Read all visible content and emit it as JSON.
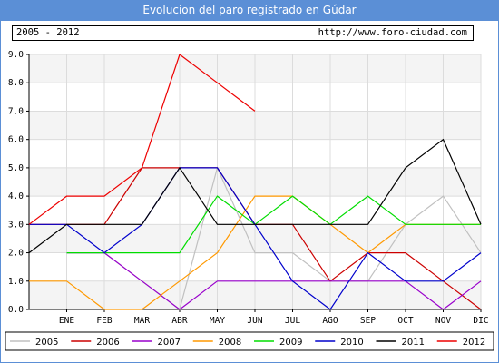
{
  "header": {
    "title": "Evolucion del paro registrado en Gúdar",
    "period": "2005 - 2012",
    "url": "http://www.foro-ciudad.com"
  },
  "chart_data": {
    "type": "line",
    "title": "Evolucion del paro registrado en Gúdar",
    "xlabel": "",
    "ylabel": "",
    "x": [
      "",
      "ENE",
      "FEB",
      "MAR",
      "ABR",
      "MAY",
      "JUN",
      "JUL",
      "AGO",
      "SEP",
      "OCT",
      "NOV",
      "DIC"
    ],
    "ylim": [
      0,
      9
    ],
    "yticks": [
      "0.0",
      "1.0",
      "2.0",
      "3.0",
      "4.0",
      "5.0",
      "6.0",
      "7.0",
      "8.0",
      "9.0"
    ],
    "grid": true,
    "legend_position": "bottom",
    "series": [
      {
        "name": "2005",
        "color": "#c0c0c0",
        "values": [
          null,
          2,
          2,
          1,
          0,
          5,
          2,
          2,
          1,
          1,
          3,
          4,
          2
        ]
      },
      {
        "name": "2006",
        "color": "#cc0000",
        "values": [
          3,
          3,
          3,
          5,
          5,
          5,
          3,
          3,
          1,
          2,
          2,
          1,
          0
        ]
      },
      {
        "name": "2007",
        "color": "#9900cc",
        "values": [
          null,
          2,
          2,
          1,
          0,
          1,
          1,
          1,
          1,
          1,
          1,
          0,
          1
        ]
      },
      {
        "name": "2008",
        "color": "#ff9900",
        "values": [
          1,
          1,
          0,
          0,
          1,
          2,
          4,
          4,
          3,
          2,
          3,
          3,
          3
        ]
      },
      {
        "name": "2009",
        "color": "#00dd00",
        "values": [
          null,
          2,
          2,
          2,
          2,
          4,
          3,
          4,
          3,
          4,
          3,
          3,
          3
        ]
      },
      {
        "name": "2010",
        "color": "#0000cc",
        "values": [
          3,
          3,
          2,
          3,
          5,
          5,
          3,
          1,
          0,
          2,
          1,
          1,
          2
        ]
      },
      {
        "name": "2011",
        "color": "#000000",
        "values": [
          2,
          3,
          3,
          3,
          5,
          3,
          3,
          3,
          3,
          3,
          5,
          6,
          3
        ]
      },
      {
        "name": "2012",
        "color": "#ee0000",
        "values": [
          3,
          4,
          4,
          5,
          9,
          8,
          7,
          null,
          null,
          null,
          null,
          null,
          null
        ]
      }
    ]
  }
}
